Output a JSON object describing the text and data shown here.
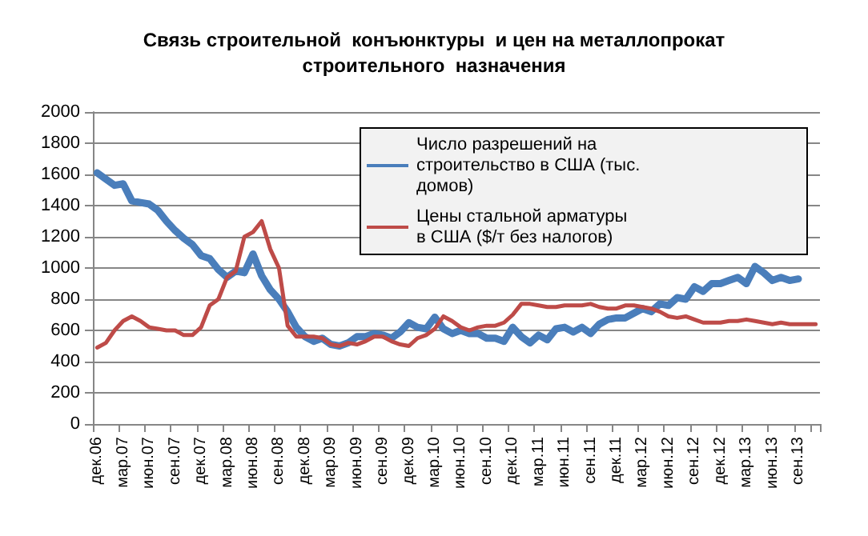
{
  "chart_data": {
    "type": "line",
    "title": "Связь строительной  конъюнктуры  и цен на металлопрокат\nстроительного  назначения",
    "categories": [
      "дек.06",
      null,
      null,
      "мар.07",
      null,
      null,
      "июн.07",
      null,
      null,
      "сен.07",
      null,
      null,
      "дек.07",
      null,
      null,
      "мар.08",
      null,
      null,
      "июн.08",
      null,
      null,
      "сен.08",
      null,
      null,
      "дек.08",
      null,
      null,
      "мар.09",
      null,
      null,
      "июн.09",
      null,
      null,
      "сен.09",
      null,
      null,
      "дек.09",
      null,
      null,
      "мар.10",
      null,
      null,
      "июн.10",
      null,
      null,
      "сен.10",
      null,
      null,
      "дек.10",
      null,
      null,
      "мар.11",
      null,
      null,
      "июн.11",
      null,
      null,
      "сен.11",
      null,
      null,
      "дек.11",
      null,
      null,
      "мар.12",
      null,
      null,
      "июн.12",
      null,
      null,
      "сен.12",
      null,
      null,
      "дек.12",
      null,
      null,
      "мар.13",
      null,
      null,
      "июн.13",
      null,
      null,
      "сен.13",
      null,
      null
    ],
    "series": [
      {
        "name": "Число разрешений на строительство в США (тыс. домов)",
        "color": "#4a7ebb",
        "values": [
          1610,
          1570,
          1530,
          1540,
          1430,
          1420,
          1410,
          1370,
          1300,
          1240,
          1190,
          1150,
          1080,
          1060,
          990,
          940,
          980,
          970,
          1090,
          950,
          860,
          800,
          720,
          620,
          560,
          530,
          550,
          510,
          500,
          520,
          560,
          560,
          580,
          570,
          550,
          590,
          650,
          620,
          610,
          685,
          610,
          580,
          600,
          580,
          580,
          550,
          550,
          530,
          620,
          560,
          520,
          570,
          540,
          610,
          620,
          590,
          620,
          580,
          640,
          670,
          680,
          680,
          710,
          740,
          720,
          770,
          760,
          810,
          800,
          880,
          850,
          900,
          900,
          920,
          940,
          900,
          1010,
          970,
          920,
          940,
          920,
          930,
          null,
          null
        ]
      },
      {
        "name": "Цены стальной арматуры в США ($/т без налогов)",
        "color": "#be4b48",
        "values": [
          490,
          520,
          600,
          660,
          690,
          660,
          620,
          610,
          600,
          600,
          570,
          570,
          620,
          760,
          800,
          940,
          980,
          1200,
          1230,
          1300,
          1120,
          1000,
          630,
          560,
          560,
          560,
          550,
          510,
          500,
          520,
          510,
          530,
          560,
          560,
          530,
          510,
          500,
          550,
          570,
          610,
          690,
          660,
          620,
          600,
          620,
          630,
          630,
          650,
          700,
          770,
          770,
          760,
          750,
          750,
          760,
          760,
          760,
          770,
          750,
          740,
          740,
          760,
          760,
          750,
          740,
          720,
          690,
          680,
          690,
          670,
          650,
          650,
          650,
          660,
          660,
          670,
          660,
          650,
          640,
          650,
          640,
          640,
          640,
          640
        ]
      }
    ],
    "ylim": [
      0,
      2000
    ],
    "yticks": [
      0,
      200,
      400,
      600,
      800,
      1000,
      1200,
      1400,
      1600,
      1800,
      2000
    ],
    "grid": "y",
    "legend": "top right",
    "marker": "none",
    "line_style": "solid"
  }
}
